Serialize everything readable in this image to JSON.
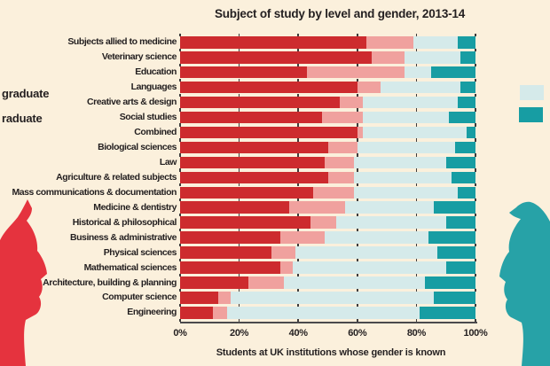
{
  "title": "Subject of study by level and gender, 2013-14",
  "legend_left": {
    "line1": "graduate",
    "line2": "raduate"
  },
  "legend_right": {
    "swatch_top": "undergraduate-male-swatch",
    "swatch_bottom": "postgraduate-male-swatch"
  },
  "x_axis": {
    "tick_labels": [
      "0%",
      "20%",
      "40%",
      "60%",
      "80%",
      "100%"
    ],
    "tick_values": [
      0,
      20,
      40,
      60,
      80,
      100
    ],
    "caption": "Students at UK institutions whose gender is known"
  },
  "colors": {
    "background": "#fbf0dc",
    "text": "#231f20",
    "axis": "#4a4a4c",
    "tick": "#3d3b3c",
    "female_undergraduate": "#cd2b2e",
    "female_postgraduate": "#f0a19e",
    "male_undergraduate": "#d5eaea",
    "male_postgraduate": "#179da3",
    "face_left_red": "#e5333e",
    "face_left_pink": "#eda6ad",
    "face_right_teal": "#27a2a7",
    "face_right_blue": "#cde6e9"
  },
  "chart_data": {
    "type": "bar",
    "stacked": true,
    "orientation": "horizontal",
    "title": "Subject of study by level and gender, 2013-14",
    "xlabel": "Students at UK institutions whose gender is known",
    "ylabel": "",
    "xlim": [
      0,
      100
    ],
    "x_ticks_percent": [
      0,
      20,
      40,
      60,
      80,
      100
    ],
    "grid": "tick-marks-between-bars",
    "legend_position": "left-and-right-edges (partially cropped)",
    "categories": [
      "Subjects allied to medicine",
      "Veterinary science",
      "Education",
      "Languages",
      "Creative arts & design",
      "Social studies",
      "Combined",
      "Biological sciences",
      "Law",
      "Agriculture & related subjects",
      "Mass communications & documentation",
      "Medicine & dentistry",
      "Historical & philosophical",
      "Business & administrative",
      "Physical sciences",
      "Mathematical sciences",
      "Architecture, building & planning",
      "Computer science",
      "Engineering"
    ],
    "series": [
      {
        "name": "Undergraduate female",
        "color_key": "female_undergraduate",
        "values": [
          63,
          65,
          43,
          60,
          54,
          48,
          60,
          50,
          49,
          50,
          45,
          37,
          44,
          34,
          31,
          34,
          23,
          13,
          11
        ]
      },
      {
        "name": "Postgraduate female",
        "color_key": "female_postgraduate",
        "values": [
          16,
          11,
          33,
          8,
          8,
          14,
          2,
          10,
          10,
          9,
          14,
          19,
          9,
          15,
          8,
          4,
          12,
          4,
          5
        ]
      },
      {
        "name": "Undergraduate male",
        "color_key": "male_undergraduate",
        "values": [
          15,
          19,
          9,
          27,
          32,
          29,
          35,
          33,
          31,
          33,
          35,
          30,
          37,
          35,
          48,
          52,
          48,
          69,
          65
        ]
      },
      {
        "name": "Postgraduate male",
        "color_key": "male_postgraduate",
        "values": [
          6,
          5,
          15,
          5,
          6,
          9,
          3,
          7,
          10,
          8,
          6,
          14,
          10,
          16,
          13,
          10,
          17,
          14,
          19
        ]
      }
    ]
  }
}
